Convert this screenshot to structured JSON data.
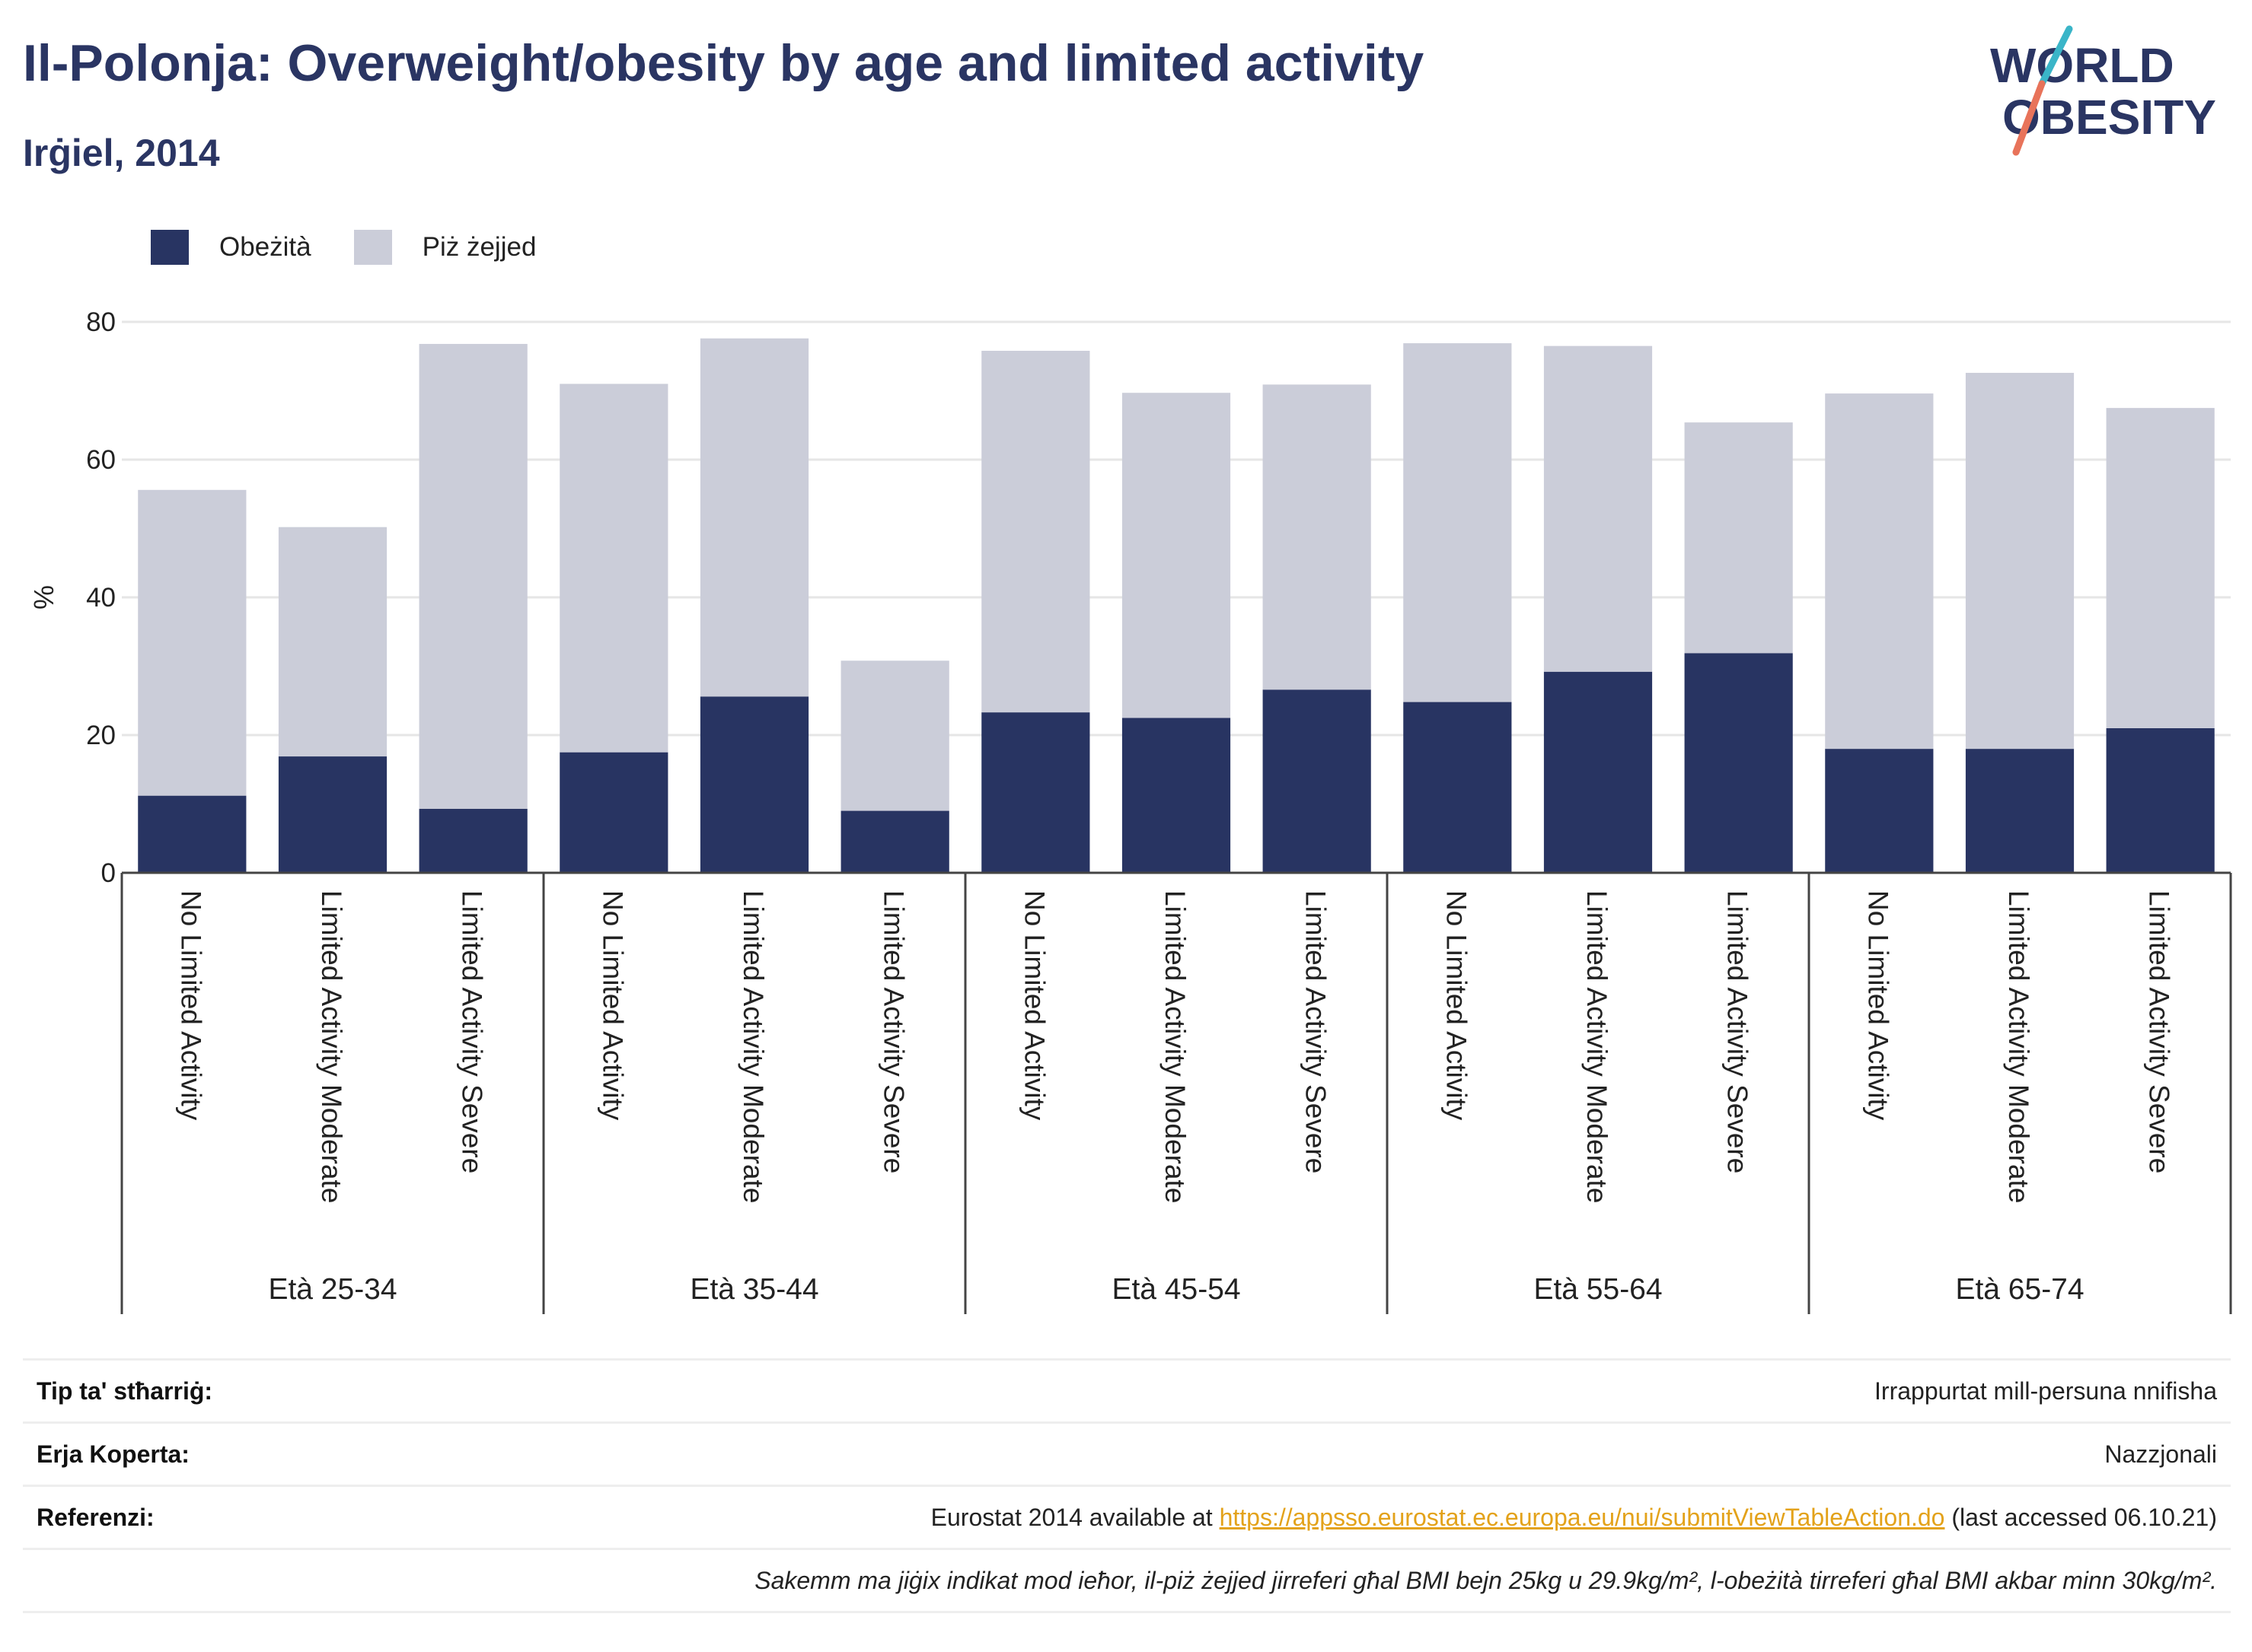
{
  "header": {
    "title": "Il-Polonja: Overweight/obesity by age and limited activity",
    "subtitle": "Irġiel, 2014"
  },
  "logo": {
    "line1": "WORLD",
    "line2": "OBESITY",
    "colors": {
      "text": "#2a3563",
      "slash_teal": "#3ab5c8",
      "slash_coral": "#e8735a"
    }
  },
  "colors": {
    "obesity": "#283462",
    "overweight": "#cbcdd9",
    "axis": "#444444",
    "grid": "#e6e6e6",
    "link": "#e3a21a"
  },
  "chart_data": {
    "type": "bar",
    "stacked": true,
    "ylabel": "%",
    "ylim": [
      0,
      80
    ],
    "yticks": [
      0,
      20,
      40,
      60,
      80
    ],
    "grid": true,
    "legend_position": "top-left",
    "groups": [
      {
        "label": "Età 25-34",
        "categories": [
          "No Limited Activity",
          "Limited Activity Moderate",
          "Limited Activity Severe"
        ]
      },
      {
        "label": "Età 35-44",
        "categories": [
          "No Limited Activity",
          "Limited Activity Moderate",
          "Limited Activity Severe"
        ]
      },
      {
        "label": "Età 45-54",
        "categories": [
          "No Limited Activity",
          "Limited Activity Moderate",
          "Limited Activity Severe"
        ]
      },
      {
        "label": "Età 55-64",
        "categories": [
          "No Limited Activity",
          "Limited Activity Moderate",
          "Limited Activity Severe"
        ]
      },
      {
        "label": "Età 65-74",
        "categories": [
          "No Limited Activity",
          "Limited Activity Moderate",
          "Limited Activity Severe"
        ]
      }
    ],
    "series": [
      {
        "name": "Obeżità",
        "values": [
          11.2,
          16.9,
          9.3,
          17.5,
          25.6,
          9.0,
          23.3,
          22.5,
          26.6,
          24.8,
          29.2,
          31.9,
          18.0,
          18.0,
          21.0
        ]
      },
      {
        "name": "Piż żejjed",
        "values": [
          44.4,
          33.3,
          67.5,
          53.5,
          52.0,
          21.8,
          52.5,
          47.2,
          44.3,
          52.1,
          47.3,
          33.5,
          51.6,
          54.6,
          46.5
        ]
      }
    ]
  },
  "footer": {
    "rows": [
      {
        "label": "Tip ta' stħarriġ:",
        "value": "Irrappurtat mill-persuna nnifisha"
      },
      {
        "label": "Erja Koperta:",
        "value": "Nazzjonali"
      },
      {
        "label": "Referenzi:",
        "value_prefix": "Eurostat 2014 available at ",
        "link": "https://appsso.eurostat.ec.europa.eu/nui/submitViewTableAction.do",
        "value_suffix": " (last accessed 06.10.21)"
      }
    ],
    "note": "Sakemm ma jiġix indikat mod ieħor, il-piż żejjed jirreferi għal BMI bejn 25kg u 29.9kg/m², l-obeżità tirreferi għal BMI akbar minn 30kg/m²."
  }
}
